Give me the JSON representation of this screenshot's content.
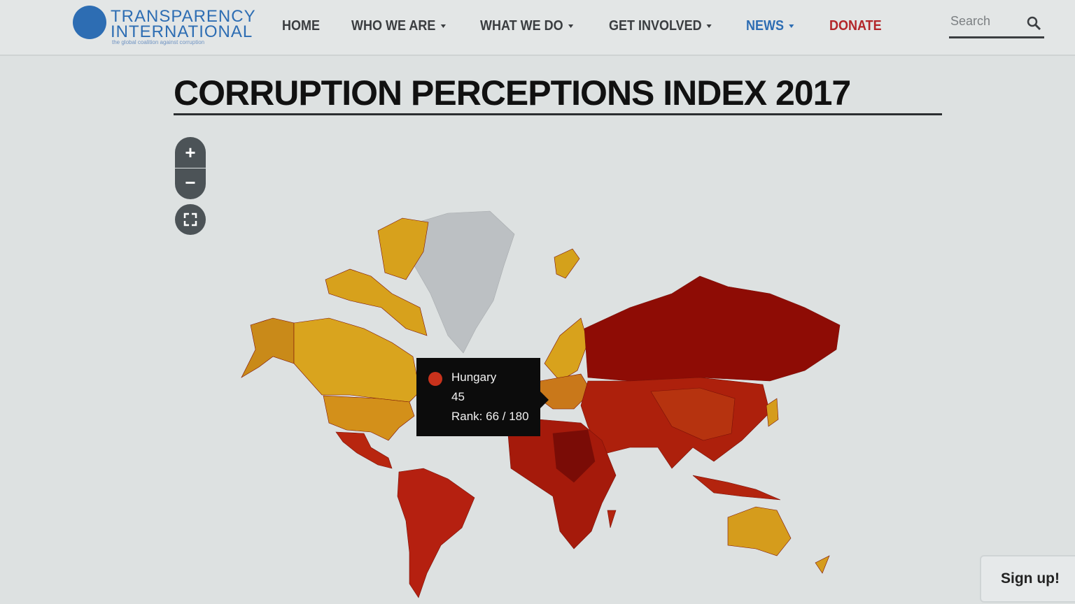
{
  "header": {
    "logo": {
      "line1": "TRANSPARENCY",
      "line2": "INTERNATIONAL",
      "tagline": "the global coalition against corruption"
    },
    "nav": [
      {
        "label": "HOME"
      },
      {
        "label": "WHO WE ARE"
      },
      {
        "label": "WHAT WE DO"
      },
      {
        "label": "GET INVOLVED"
      },
      {
        "label": "NEWS"
      },
      {
        "label": "DONATE"
      }
    ],
    "search_placeholder": "Search"
  },
  "page": {
    "title": "CORRUPTION PERCEPTIONS INDEX 2017"
  },
  "map": {
    "tooltip": {
      "country": "Hungary",
      "score": 45,
      "rank": "Rank: 66 / 180"
    }
  },
  "signup": "Sign up!"
}
